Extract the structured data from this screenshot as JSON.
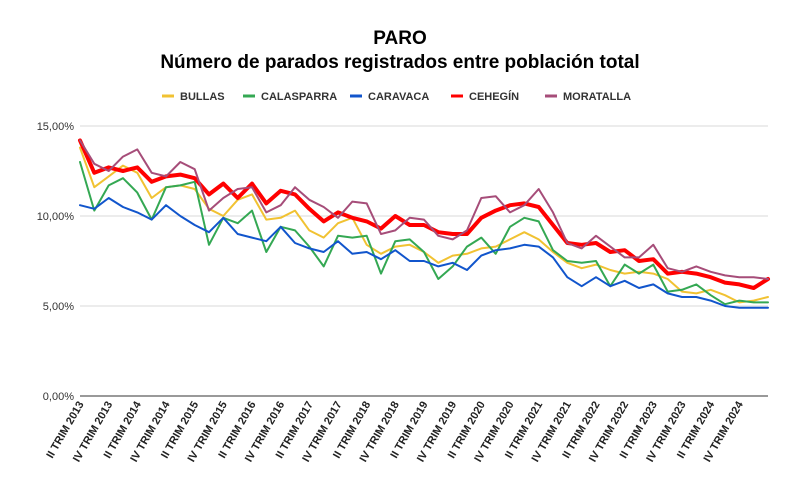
{
  "chart_data": {
    "type": "line",
    "title": "PARO",
    "subtitle": "Número de parados registrados entre población total",
    "legend_position": "top",
    "grid": true,
    "ylim": [
      0,
      15
    ],
    "yticks": [
      0,
      5,
      10,
      15
    ],
    "ytick_labels": [
      "0,00%",
      "5,00%",
      "10,00%",
      "15,00%"
    ],
    "tick_labels": [
      "II TRIM 2013",
      "IV TRIM 2013",
      "II TRIM 2014",
      "IV TRIM 2014",
      "II TRIM 2015",
      "IV TRIM 2015",
      "II TRIM 2016",
      "IV TRIM 2016",
      "II TRIM 2017",
      "IV TRIM 2017",
      "II TRIM 2018",
      "IV TRIM 2018",
      "II TRIM 2019",
      "IV TRIM 2019",
      "II TRIM 2020",
      "IV TRIM 2020",
      "II TRIM 2021",
      "IV TRIM 2021",
      "II TRIM 2022",
      "IV TRIM 2022",
      "II TRIM 2023",
      "IV TRIM 2023",
      "II TRIM 2024",
      "IV TRIM 2024"
    ],
    "series": [
      {
        "name": "BULLAS",
        "color": "#f1c232",
        "width": 2,
        "values": [
          13.8,
          11.6,
          12.2,
          12.8,
          12.4,
          11.0,
          11.6,
          11.7,
          11.5,
          10.4,
          10.0,
          10.9,
          11.2,
          9.8,
          9.9,
          10.3,
          9.2,
          8.8,
          9.6,
          9.9,
          8.4,
          7.9,
          8.3,
          8.4,
          8.0,
          7.4,
          7.8,
          7.9,
          8.2,
          8.3,
          8.7,
          9.1,
          8.7,
          8.0,
          7.4,
          7.1,
          7.3,
          7.0,
          6.8,
          6.9,
          6.8,
          6.5,
          5.8,
          5.7,
          5.9,
          5.6,
          5.2,
          5.3,
          5.5
        ]
      },
      {
        "name": "CALASPARRA",
        "color": "#34a853",
        "width": 2,
        "values": [
          13.0,
          10.3,
          11.7,
          12.1,
          11.3,
          9.8,
          11.6,
          11.7,
          11.9,
          8.4,
          9.9,
          9.6,
          10.3,
          8.0,
          9.4,
          9.2,
          8.3,
          7.2,
          8.9,
          8.8,
          8.9,
          6.8,
          8.6,
          8.7,
          8.0,
          6.5,
          7.2,
          8.3,
          8.8,
          7.9,
          9.4,
          9.9,
          9.7,
          8.1,
          7.5,
          7.4,
          7.5,
          6.1,
          7.3,
          6.8,
          7.3,
          5.8,
          5.9,
          6.2,
          5.6,
          5.1,
          5.3,
          5.2,
          5.2
        ]
      },
      {
        "name": "CARAVACA",
        "color": "#1155cc",
        "width": 2,
        "values": [
          10.6,
          10.4,
          11.0,
          10.5,
          10.2,
          9.8,
          10.6,
          10.0,
          9.5,
          9.1,
          9.9,
          9.0,
          8.8,
          8.6,
          9.4,
          8.5,
          8.2,
          8.0,
          8.6,
          7.9,
          8.0,
          7.6,
          8.1,
          7.5,
          7.5,
          7.2,
          7.4,
          7.0,
          7.8,
          8.1,
          8.2,
          8.4,
          8.3,
          7.7,
          6.6,
          6.1,
          6.6,
          6.1,
          6.4,
          6.0,
          6.2,
          5.7,
          5.5,
          5.5,
          5.3,
          5.0,
          4.9,
          4.9,
          4.9
        ]
      },
      {
        "name": "CEHEGÍN",
        "color": "#ff0000",
        "width": 4,
        "values": [
          14.2,
          12.4,
          12.7,
          12.5,
          12.7,
          11.9,
          12.2,
          12.3,
          12.1,
          11.2,
          11.8,
          11.0,
          11.8,
          10.7,
          11.4,
          11.2,
          10.4,
          9.7,
          10.2,
          9.9,
          9.7,
          9.3,
          10.0,
          9.5,
          9.5,
          9.1,
          9.0,
          9.0,
          9.9,
          10.3,
          10.6,
          10.7,
          10.5,
          9.5,
          8.5,
          8.4,
          8.5,
          8.0,
          8.1,
          7.5,
          7.6,
          6.8,
          6.9,
          6.8,
          6.6,
          6.3,
          6.2,
          6.0,
          6.5
        ]
      },
      {
        "name": "MORATALLA",
        "color": "#a64d79",
        "width": 2,
        "values": [
          14.2,
          12.9,
          12.5,
          13.3,
          13.7,
          12.4,
          12.2,
          13.0,
          12.6,
          10.3,
          11.0,
          11.5,
          11.6,
          10.2,
          10.6,
          11.6,
          10.9,
          10.5,
          9.9,
          10.8,
          10.7,
          9.0,
          9.2,
          9.9,
          9.8,
          8.9,
          8.7,
          9.2,
          11.0,
          11.1,
          10.2,
          10.6,
          11.5,
          10.2,
          8.5,
          8.2,
          8.9,
          8.3,
          7.7,
          7.7,
          8.4,
          7.1,
          6.9,
          7.2,
          6.9,
          6.7,
          6.6,
          6.6,
          6.5
        ]
      }
    ]
  }
}
